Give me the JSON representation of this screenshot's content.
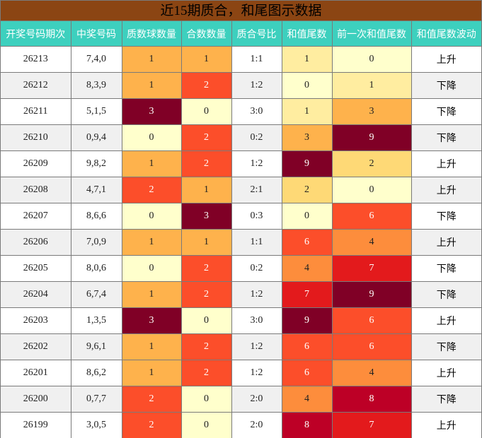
{
  "title": "近15期质合，和尾图示数据",
  "headers": [
    "开奖号码期次",
    "中奖号码",
    "质数球数量",
    "合数数量",
    "质合号比",
    "和值尾数",
    "前一次和值尾数",
    "和值尾数波动"
  ],
  "heat_colors": {
    "0": "#FFFFCC",
    "1": "#FEB24C",
    "2": "#FC4E2A",
    "3": "#800026",
    "4": "#FD8D3C",
    "5": "#FD8D3C",
    "6": "#FC4E2A",
    "7": "#E31A1C",
    "8": "#BD0026",
    "9": "#800026"
  },
  "heat_colors_sum": {
    "0": "#FFFFCC",
    "1": "#FFEDA0",
    "2": "#FED976",
    "3": "#FEB24C",
    "4": "#FD8D3C",
    "5": "#FD8D3C",
    "6": "#FC4E2A",
    "7": "#E31A1C",
    "8": "#BD0026",
    "9": "#800026"
  },
  "rows": [
    {
      "issue": "26213",
      "numbers": "7,4,0",
      "primes": "1",
      "composites": "1",
      "ratio": "1:1",
      "tail": "1",
      "prev_tail": "0",
      "trend": "上升"
    },
    {
      "issue": "26212",
      "numbers": "8,3,9",
      "primes": "1",
      "composites": "2",
      "ratio": "1:2",
      "tail": "0",
      "prev_tail": "1",
      "trend": "下降"
    },
    {
      "issue": "26211",
      "numbers": "5,1,5",
      "primes": "3",
      "composites": "0",
      "ratio": "3:0",
      "tail": "1",
      "prev_tail": "3",
      "trend": "下降"
    },
    {
      "issue": "26210",
      "numbers": "0,9,4",
      "primes": "0",
      "composites": "2",
      "ratio": "0:2",
      "tail": "3",
      "prev_tail": "9",
      "trend": "下降"
    },
    {
      "issue": "26209",
      "numbers": "9,8,2",
      "primes": "1",
      "composites": "2",
      "ratio": "1:2",
      "tail": "9",
      "prev_tail": "2",
      "trend": "上升"
    },
    {
      "issue": "26208",
      "numbers": "4,7,1",
      "primes": "2",
      "composites": "1",
      "ratio": "2:1",
      "tail": "2",
      "prev_tail": "0",
      "trend": "上升"
    },
    {
      "issue": "26207",
      "numbers": "8,6,6",
      "primes": "0",
      "composites": "3",
      "ratio": "0:3",
      "tail": "0",
      "prev_tail": "6",
      "trend": "下降"
    },
    {
      "issue": "26206",
      "numbers": "7,0,9",
      "primes": "1",
      "composites": "1",
      "ratio": "1:1",
      "tail": "6",
      "prev_tail": "4",
      "trend": "上升"
    },
    {
      "issue": "26205",
      "numbers": "8,0,6",
      "primes": "0",
      "composites": "2",
      "ratio": "0:2",
      "tail": "4",
      "prev_tail": "7",
      "trend": "下降"
    },
    {
      "issue": "26204",
      "numbers": "6,7,4",
      "primes": "1",
      "composites": "2",
      "ratio": "1:2",
      "tail": "7",
      "prev_tail": "9",
      "trend": "下降"
    },
    {
      "issue": "26203",
      "numbers": "1,3,5",
      "primes": "3",
      "composites": "0",
      "ratio": "3:0",
      "tail": "9",
      "prev_tail": "6",
      "trend": "上升"
    },
    {
      "issue": "26202",
      "numbers": "9,6,1",
      "primes": "1",
      "composites": "2",
      "ratio": "1:2",
      "tail": "6",
      "prev_tail": "6",
      "trend": "下降"
    },
    {
      "issue": "26201",
      "numbers": "8,6,2",
      "primes": "1",
      "composites": "2",
      "ratio": "1:2",
      "tail": "6",
      "prev_tail": "4",
      "trend": "上升"
    },
    {
      "issue": "26200",
      "numbers": "0,7,7",
      "primes": "2",
      "composites": "0",
      "ratio": "2:0",
      "tail": "4",
      "prev_tail": "8",
      "trend": "下降"
    },
    {
      "issue": "26199",
      "numbers": "3,0,5",
      "primes": "2",
      "composites": "0",
      "ratio": "2:0",
      "tail": "8",
      "prev_tail": "7",
      "trend": "上升"
    }
  ]
}
